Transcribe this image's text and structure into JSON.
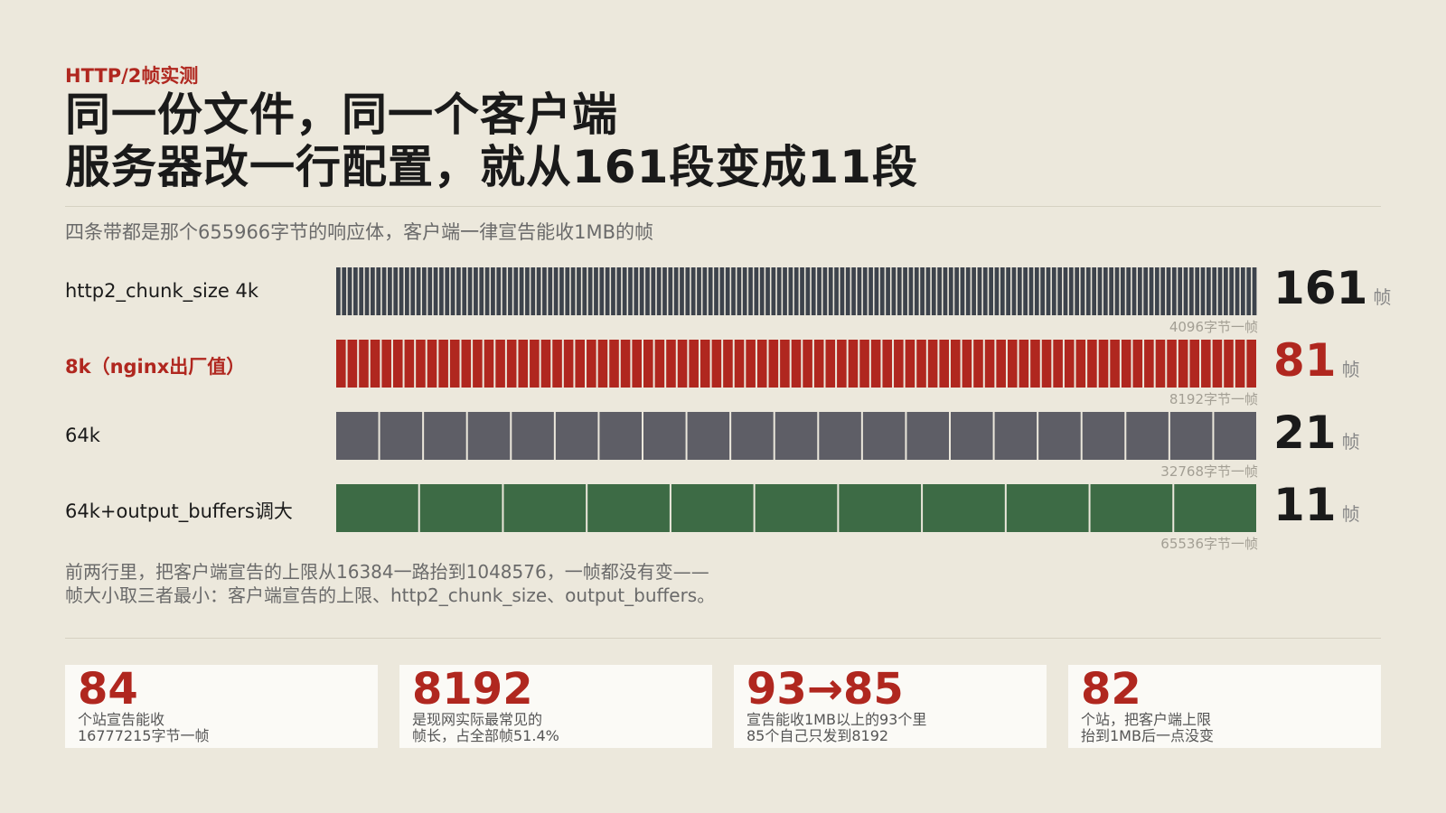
{
  "header": {
    "kicker": "HTTP/2帧实测",
    "title_line1": "同一份文件，同一个客户端",
    "title_line2": "服务器改一行配置，就从161段变成11段",
    "subtitle": "四条带都是那个655966字节的响应体，客户端一律宣告能收1MB的帧"
  },
  "chart_data": {
    "type": "bar",
    "title": "同一份文件，同一个客户端 服务器改一行配置，就从161段变成11段",
    "unit": "帧",
    "series": [
      {
        "label": "http2_chunk_size 4k",
        "frames": 161,
        "caption": "4096字节一帧",
        "color": "#3d434c",
        "highlight": false
      },
      {
        "label": "8k（nginx出厂值）",
        "frames": 81,
        "caption": "8192字节一帧",
        "color": "#b0271f",
        "highlight": true
      },
      {
        "label": "64k",
        "frames": 21,
        "caption": "32768字节一帧",
        "color": "#5e5e66",
        "highlight": false
      },
      {
        "label": "64k+output_buffers调大",
        "frames": 11,
        "caption": "65536字节一帧",
        "color": "#3d6b45",
        "highlight": false
      }
    ]
  },
  "note": {
    "line1": "前两行里，把客户端宣告的上限从16384一路抬到1048576，一帧都没有变——",
    "line2": "帧大小取三者最小：客户端宣告的上限、http2_chunk_size、output_buffers。"
  },
  "stats": [
    {
      "value": "84",
      "line1": "个站宣告能收",
      "line2": "16777215字节一帧"
    },
    {
      "value": "8192",
      "line1": "是现网实际最常见的",
      "line2": "帧长，占全部帧51.4%"
    },
    {
      "value": "93→85",
      "line1": "宣告能收1MB以上的93个里",
      "line2": "85个自己只发到8192"
    },
    {
      "value": "82",
      "line1": "个站，把客户端上限",
      "line2": "抬到1MB后一点没变"
    }
  ]
}
